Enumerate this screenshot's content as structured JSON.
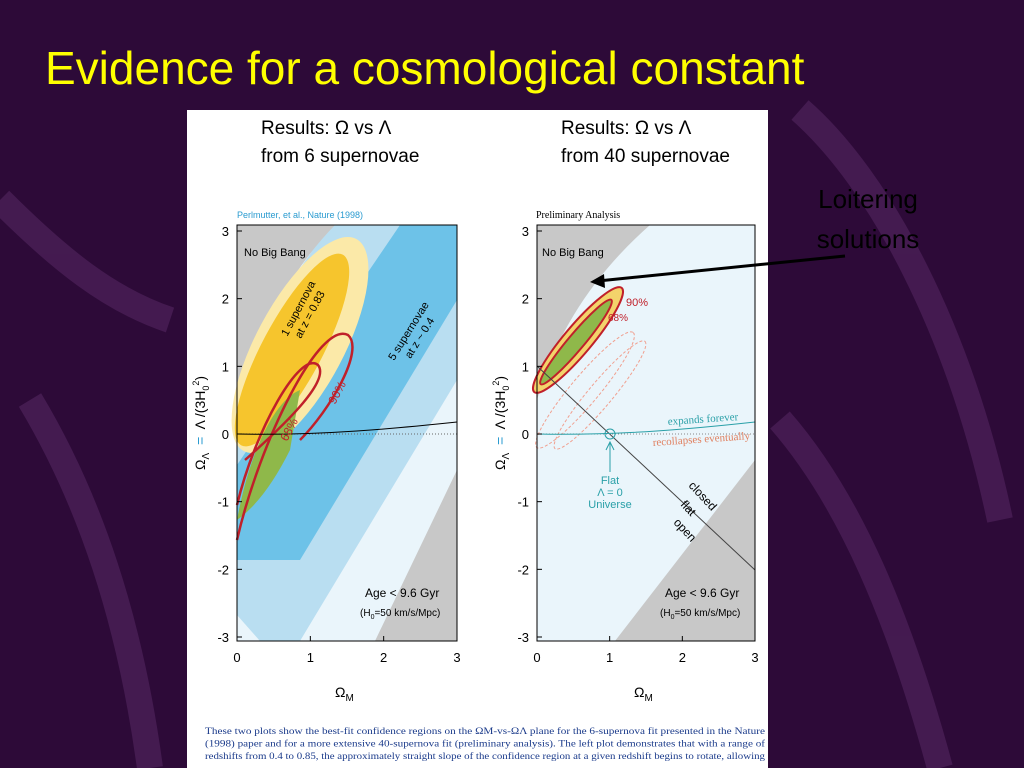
{
  "slide": {
    "title": "Evidence for a cosmological constant",
    "annotation": [
      "Loitering",
      "solutions"
    ]
  },
  "panels": [
    {
      "heading": [
        "Results: Ω vs Λ",
        "from 6 supernovae"
      ],
      "source": "Perlmutter, et al., Nature (1998)",
      "xticks": [
        "0",
        "1",
        "2",
        "3"
      ],
      "yticks": [
        "3",
        "2",
        "1",
        "0",
        "-1",
        "-2",
        "-3"
      ],
      "xlabel": [
        "Ω",
        "M"
      ],
      "ylabel": [
        "Ω",
        "Λ",
        "= ",
        "Λ /(3H",
        "0",
        "2",
        ")"
      ],
      "region": "No Big Bang",
      "fit_small": [
        "1 supernova",
        "at z = 0.83"
      ],
      "fit_large": [
        "5 supernovae",
        "at z ~ 0.4"
      ],
      "levels": [
        "68%",
        "90%"
      ],
      "age": "Age < 9.6 Gyr",
      "hubble": [
        "(H",
        "0",
        "=50 km/s/Mpc)"
      ]
    },
    {
      "heading": [
        "Results: Ω vs Λ",
        "from 40 supernovae"
      ],
      "source": "Preliminary Analysis",
      "xticks": [
        "0",
        "1",
        "2",
        "3"
      ],
      "yticks": [
        "3",
        "2",
        "1",
        "0",
        "-1",
        "-2",
        "-3"
      ],
      "xlabel": [
        "Ω",
        "M"
      ],
      "ylabel": [
        "Ω",
        "Λ",
        "= ",
        "Λ /(3H",
        "0",
        "2",
        ")"
      ],
      "region": "No Big Bang",
      "levels": [
        "68%",
        "90%"
      ],
      "expand": "expands forever",
      "recollapse": "recollapses eventually",
      "flat": [
        "Flat",
        "Λ = 0",
        "Universe"
      ],
      "geometry": [
        "closed",
        "flat",
        "open"
      ],
      "age": "Age < 9.6 Gyr",
      "hubble": [
        "(H",
        "0",
        "=50 km/s/Mpc)"
      ]
    }
  ],
  "caption": [
    "These two plots show the best-fit confidence regions on the  ΩM-vs-ΩΛ  plane for the 6-supernova fit presented in the Nature",
    "(1998) paper and for a more extensive 40-supernova fit (preliminary analysis).  The left plot demonstrates that with a range of",
    "redshifts from 0.4 to 0.85, the approximately straight slope of the confidence region at a given redshift begins to rotate, allowing"
  ]
}
